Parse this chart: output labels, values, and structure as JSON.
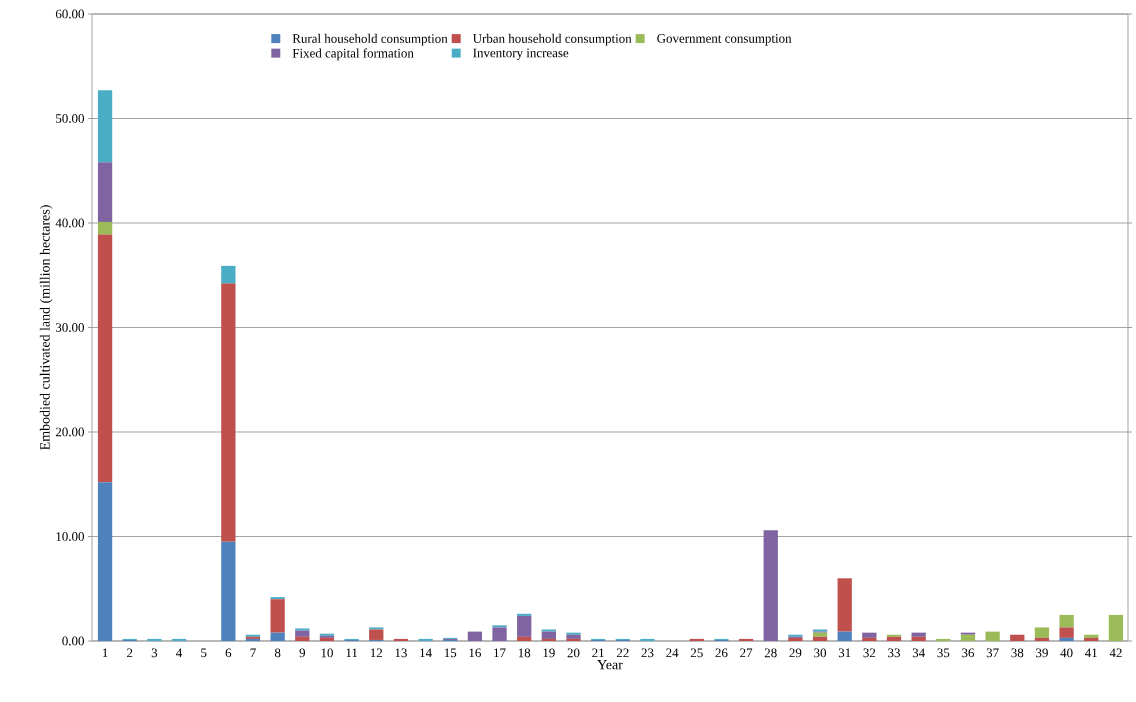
{
  "chart_data": {
    "type": "bar",
    "stacked": true,
    "xlabel": "Year",
    "ylabel": "Embodied cultivated land (million hectares)",
    "categories": [
      "1",
      "2",
      "3",
      "4",
      "5",
      "6",
      "7",
      "8",
      "9",
      "10",
      "11",
      "12",
      "13",
      "14",
      "15",
      "16",
      "17",
      "18",
      "19",
      "20",
      "21",
      "22",
      "23",
      "24",
      "25",
      "26",
      "27",
      "28",
      "29",
      "30",
      "31",
      "32",
      "33",
      "34",
      "35",
      "36",
      "37",
      "38",
      "39",
      "40",
      "41",
      "42"
    ],
    "series": [
      {
        "name": "Rural household consumption",
        "color": "#4f81bd",
        "values": [
          15.2,
          0.1,
          null,
          null,
          null,
          9.5,
          0.2,
          0.8,
          null,
          null,
          0.1,
          0.1,
          null,
          null,
          0.1,
          null,
          null,
          null,
          null,
          null,
          0.1,
          0.1,
          null,
          null,
          null,
          0.1,
          null,
          null,
          null,
          null,
          0.9,
          null,
          null,
          null,
          null,
          null,
          null,
          null,
          null,
          0.3,
          null,
          null
        ]
      },
      {
        "name": "Urban household consumption",
        "color": "#c0504d",
        "values": [
          23.7,
          null,
          null,
          null,
          null,
          24.7,
          0.2,
          3.2,
          0.4,
          0.3,
          null,
          1.0,
          0.2,
          null,
          null,
          null,
          null,
          0.4,
          0.2,
          0.2,
          null,
          null,
          null,
          null,
          0.2,
          null,
          0.2,
          null,
          0.3,
          0.4,
          5.1,
          0.3,
          0.4,
          0.4,
          null,
          null,
          null,
          0.6,
          0.3,
          1.0,
          0.3,
          null
        ]
      },
      {
        "name": "Government consumption",
        "color": "#9bbb59",
        "values": [
          1.2,
          null,
          null,
          null,
          null,
          null,
          null,
          null,
          null,
          null,
          null,
          null,
          null,
          null,
          null,
          null,
          null,
          null,
          null,
          null,
          null,
          null,
          null,
          null,
          null,
          null,
          null,
          null,
          null,
          0.4,
          null,
          null,
          0.2,
          null,
          0.2,
          0.6,
          0.9,
          null,
          1.0,
          1.2,
          0.3,
          2.5
        ]
      },
      {
        "name": "Fixed capital formation",
        "color": "#8064a2",
        "values": [
          5.7,
          null,
          null,
          null,
          null,
          null,
          null,
          null,
          0.6,
          0.2,
          null,
          null,
          null,
          null,
          0.1,
          0.9,
          1.3,
          2.0,
          0.7,
          0.4,
          null,
          null,
          null,
          null,
          null,
          null,
          null,
          10.6,
          0.1,
          0.1,
          null,
          0.5,
          null,
          0.4,
          null,
          0.2,
          null,
          null,
          null,
          null,
          null,
          null
        ]
      },
      {
        "name": "Inventory increase",
        "color": "#4bacc6",
        "values": [
          6.9,
          0.1,
          0.2,
          0.2,
          null,
          1.7,
          0.2,
          0.2,
          0.2,
          0.2,
          0.1,
          0.2,
          null,
          0.2,
          0.1,
          null,
          0.2,
          0.2,
          0.2,
          0.2,
          0.1,
          0.1,
          0.2,
          null,
          null,
          0.1,
          null,
          null,
          0.2,
          0.2,
          null,
          null,
          null,
          null,
          null,
          null,
          null,
          null,
          null,
          null,
          null,
          null
        ]
      }
    ],
    "ylim": [
      0,
      60
    ],
    "yticks": [
      {
        "value": 0,
        "label": "0.00"
      },
      {
        "value": 10,
        "label": "10.00"
      },
      {
        "value": 20,
        "label": "20.00"
      },
      {
        "value": 30,
        "label": "30.00"
      },
      {
        "value": 40,
        "label": "40.00"
      },
      {
        "value": 50,
        "label": "50.00"
      },
      {
        "value": 60,
        "label": "60.00"
      }
    ],
    "grid": "y",
    "legend": "top"
  }
}
